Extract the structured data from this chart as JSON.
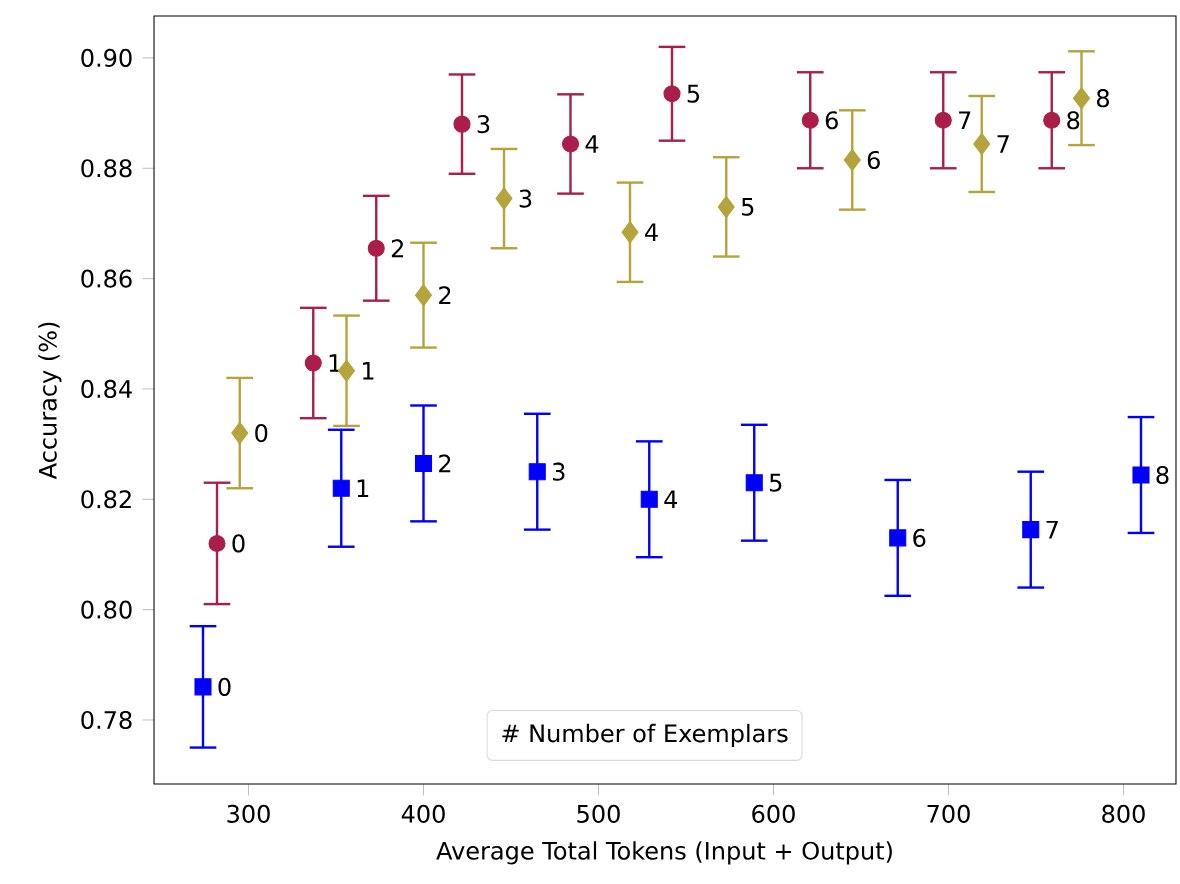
{
  "chart_data": {
    "type": "scatter",
    "xlabel": "Average Total Tokens (Input + Output)",
    "ylabel": "Accuracy (%)",
    "xlim": [
      246,
      830
    ],
    "xticks": [
      300,
      400,
      500,
      600,
      700,
      800
    ],
    "ylim": [
      0.7684,
      0.9076
    ],
    "yticks": [
      {
        "value": 0.78,
        "label": "0.78"
      },
      {
        "value": 0.8,
        "label": "0.80"
      },
      {
        "value": 0.82,
        "label": "0.82"
      },
      {
        "value": 0.84,
        "label": "0.84"
      },
      {
        "value": 0.86,
        "label": "0.86"
      },
      {
        "value": 0.88,
        "label": "0.88"
      },
      {
        "value": 0.9,
        "label": "0.90"
      }
    ],
    "grid": false,
    "series": [
      {
        "color": "#a91e4a",
        "marker": "circle",
        "x": [
          282,
          337,
          373,
          422,
          484,
          542,
          621,
          697,
          759
        ],
        "values": [
          0.812,
          0.8447,
          0.8655,
          0.888,
          0.8844,
          0.8935,
          0.8887,
          0.8887,
          0.8887
        ],
        "errors": [
          0.011,
          0.01,
          0.0095,
          0.009,
          0.009,
          0.0085,
          0.0087,
          0.0087,
          0.0087
        ]
      },
      {
        "color": "#0000ff",
        "marker": "square",
        "x": [
          274,
          353,
          400,
          465,
          529,
          589,
          671,
          747,
          810
        ],
        "values": [
          0.786,
          0.822,
          0.8265,
          0.825,
          0.82,
          0.823,
          0.813,
          0.8145,
          0.8244
        ],
        "errors": [
          0.011,
          0.0106,
          0.0105,
          0.0105,
          0.0105,
          0.0105,
          0.0105,
          0.0105,
          0.0105
        ]
      },
      {
        "color": "#b5a33c",
        "marker": "diamond",
        "x": [
          295,
          356,
          400,
          446,
          518,
          573,
          645,
          719,
          776
        ],
        "values": [
          0.832,
          0.8433,
          0.857,
          0.8745,
          0.8684,
          0.873,
          0.8815,
          0.8844,
          0.8927
        ],
        "errors": [
          0.01,
          0.01,
          0.0095,
          0.009,
          0.009,
          0.009,
          0.009,
          0.0087,
          0.0085
        ]
      }
    ],
    "annotations": [
      "#  Number of Exemplars",
      {
        "text": "0",
        "x": 282,
        "y": 0.812
      },
      {
        "text": "1",
        "x": 337,
        "y": 0.8447
      },
      {
        "text": "2",
        "x": 373,
        "y": 0.8655
      },
      {
        "text": "3",
        "x": 422,
        "y": 0.888
      },
      {
        "text": "4",
        "x": 484,
        "y": 0.8844
      },
      {
        "text": "5",
        "x": 542,
        "y": 0.8935
      },
      {
        "text": "6",
        "x": 621,
        "y": 0.8887
      },
      {
        "text": "7",
        "x": 697,
        "y": 0.8887
      },
      {
        "text": "8",
        "x": 759,
        "y": 0.8887
      },
      {
        "text": "0",
        "x": 274,
        "y": 0.786
      },
      {
        "text": "1",
        "x": 353,
        "y": 0.822
      },
      {
        "text": "2",
        "x": 400,
        "y": 0.8265
      },
      {
        "text": "3",
        "x": 465,
        "y": 0.825
      },
      {
        "text": "4",
        "x": 529,
        "y": 0.82
      },
      {
        "text": "5",
        "x": 589,
        "y": 0.823
      },
      {
        "text": "6",
        "x": 671,
        "y": 0.813
      },
      {
        "text": "7",
        "x": 747,
        "y": 0.8145
      },
      {
        "text": "8",
        "x": 810,
        "y": 0.8244
      },
      {
        "text": "0",
        "x": 295,
        "y": 0.832
      },
      {
        "text": "1",
        "x": 356,
        "y": 0.8433
      },
      {
        "text": "2",
        "x": 400,
        "y": 0.857
      },
      {
        "text": "3",
        "x": 446,
        "y": 0.8745
      },
      {
        "text": "4",
        "x": 518,
        "y": 0.8684
      },
      {
        "text": "5",
        "x": 573,
        "y": 0.873
      },
      {
        "text": "6",
        "x": 645,
        "y": 0.8815
      },
      {
        "text": "7",
        "x": 719,
        "y": 0.8844
      },
      {
        "text": "8",
        "x": 776,
        "y": 0.8927
      }
    ]
  }
}
